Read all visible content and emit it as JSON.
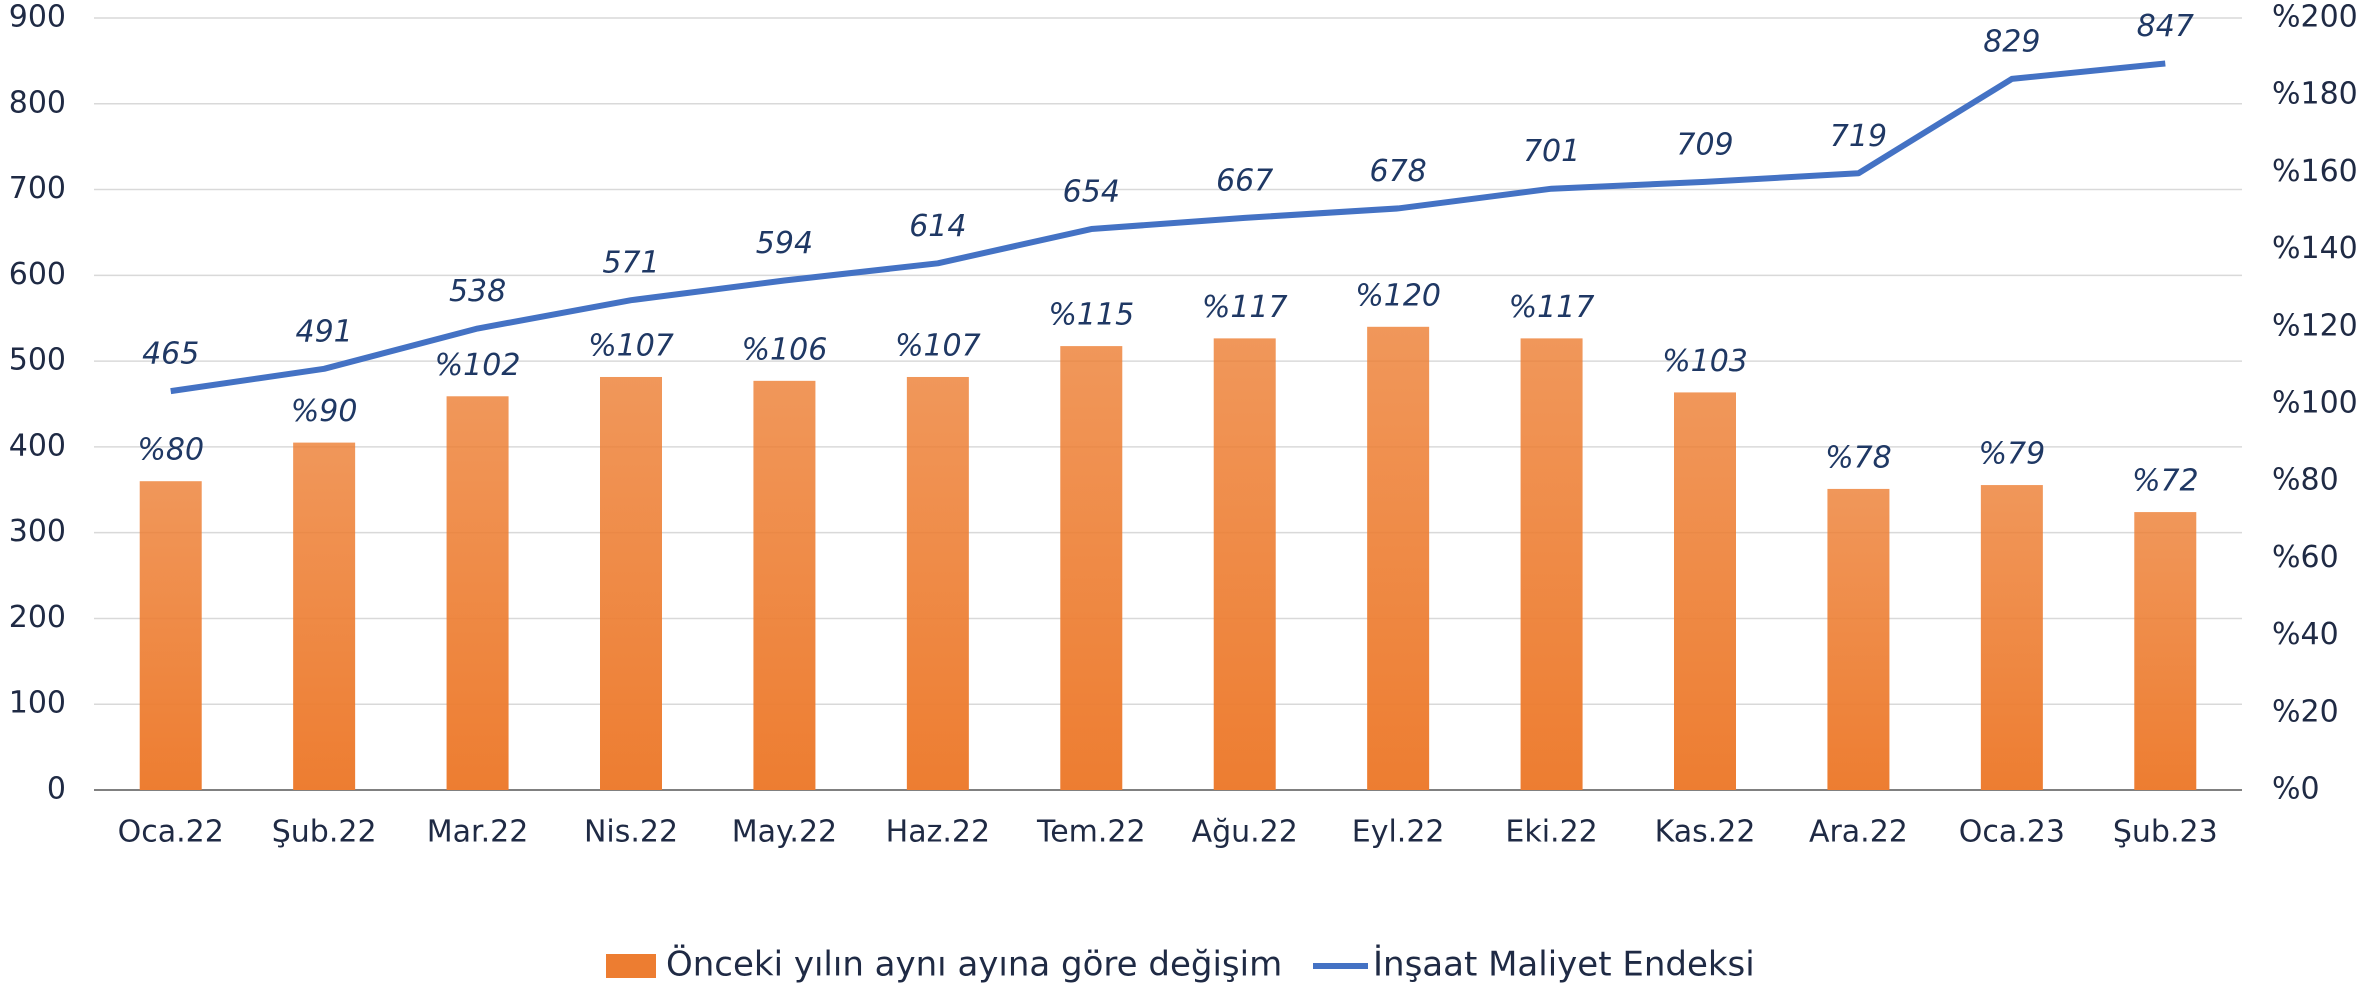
{
  "chart_data": {
    "type": "bar-line",
    "categories": [
      "Oca.22",
      "Şub.22",
      "Mar.22",
      "Nis.22",
      "May.22",
      "Haz.22",
      "Tem.22",
      "Ağu.22",
      "Eyl.22",
      "Eki.22",
      "Kas.22",
      "Ara.22",
      "Oca.23",
      "Şub.23"
    ],
    "series": [
      {
        "name": "Önceki yılın aynı ayına göre değişim",
        "type": "bar",
        "axis": "y2",
        "color": "#ED7D31",
        "values": [
          80,
          90,
          102,
          107,
          106,
          107,
          115,
          117,
          120,
          117,
          103,
          78,
          79,
          72
        ],
        "value_labels": [
          "%80",
          "%90",
          "%102",
          "%107",
          "%106",
          "%107",
          "%115",
          "%117",
          "%120",
          "%117",
          "%103",
          "%78",
          "%79",
          "%72"
        ]
      },
      {
        "name": "İnşaat Maliyet Endeksi",
        "type": "line",
        "axis": "y",
        "color": "#4472C4",
        "values": [
          465,
          491,
          538,
          571,
          594,
          614,
          654,
          667,
          678,
          701,
          709,
          719,
          829,
          847
        ]
      }
    ],
    "ylim": [
      0,
      900
    ],
    "yticks": [
      0,
      100,
      200,
      300,
      400,
      500,
      600,
      700,
      800,
      900
    ],
    "y2lim": [
      0,
      200
    ],
    "y2ticks": [
      {
        "value": 0,
        "label": "%0"
      },
      {
        "value": 20,
        "label": "%20"
      },
      {
        "value": 40,
        "label": "%40"
      },
      {
        "value": 60,
        "label": "%60"
      },
      {
        "value": 80,
        "label": "%80"
      },
      {
        "value": 100,
        "label": "%100"
      },
      {
        "value": 120,
        "label": "%120"
      },
      {
        "value": 140,
        "label": "%140"
      },
      {
        "value": 160,
        "label": "%160"
      },
      {
        "value": 180,
        "label": "%180"
      },
      {
        "value": 200,
        "label": "%200"
      }
    ],
    "grid": true,
    "legend": "bottom"
  }
}
